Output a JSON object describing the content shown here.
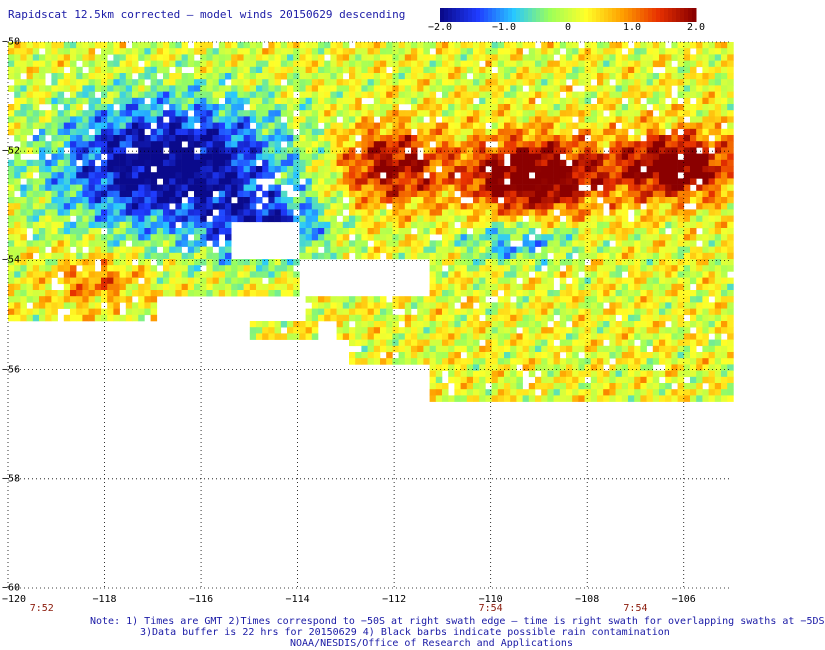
{
  "title": "Rapidscat 12.5km corrected – model winds 20150629 descending",
  "colorbar": {
    "labels": [
      "−2.0",
      "−1.0",
      "0",
      "1.0",
      "2.0"
    ],
    "values": [
      -2.0,
      -1.0,
      0,
      1.0,
      2.0
    ],
    "colors": [
      "#0a0a8c",
      "#1f3cff",
      "#28c8ff",
      "#9cff5a",
      "#ffff28",
      "#ffa000",
      "#e83200",
      "#8b0000"
    ]
  },
  "map": {
    "lat_labels": [
      "−50",
      "−52",
      "−54",
      "−56",
      "−58",
      "−60"
    ],
    "lat_values": [
      -50,
      -52,
      -54,
      -56,
      -58,
      -60
    ],
    "lon_labels": [
      "−120",
      "−118",
      "−116",
      "−114",
      "−112",
      "−110",
      "−108",
      "−106"
    ],
    "lon_values": [
      -120,
      -118,
      -116,
      -114,
      -112,
      -110,
      -108,
      -106
    ],
    "lon_range": [
      -120,
      -105
    ],
    "lat_range": [
      -60,
      -50
    ],
    "time_labels": [
      {
        "text": "7:52",
        "lon": -119.3
      },
      {
        "text": "7:54",
        "lon": -110
      },
      {
        "text": "7:54",
        "lon": -107
      }
    ]
  },
  "notes": {
    "line1": "Note: 1) Times are GMT 2)Times correspond to −50S at right swath edge – time is right swath for overlapping swaths at −5DS",
    "line2": "3)Data buffer is 22 hrs for 20150629 4) Black barbs indicate possible rain contamination",
    "line3": "NOAA/NESDIS/Office of Research and Applications"
  }
}
